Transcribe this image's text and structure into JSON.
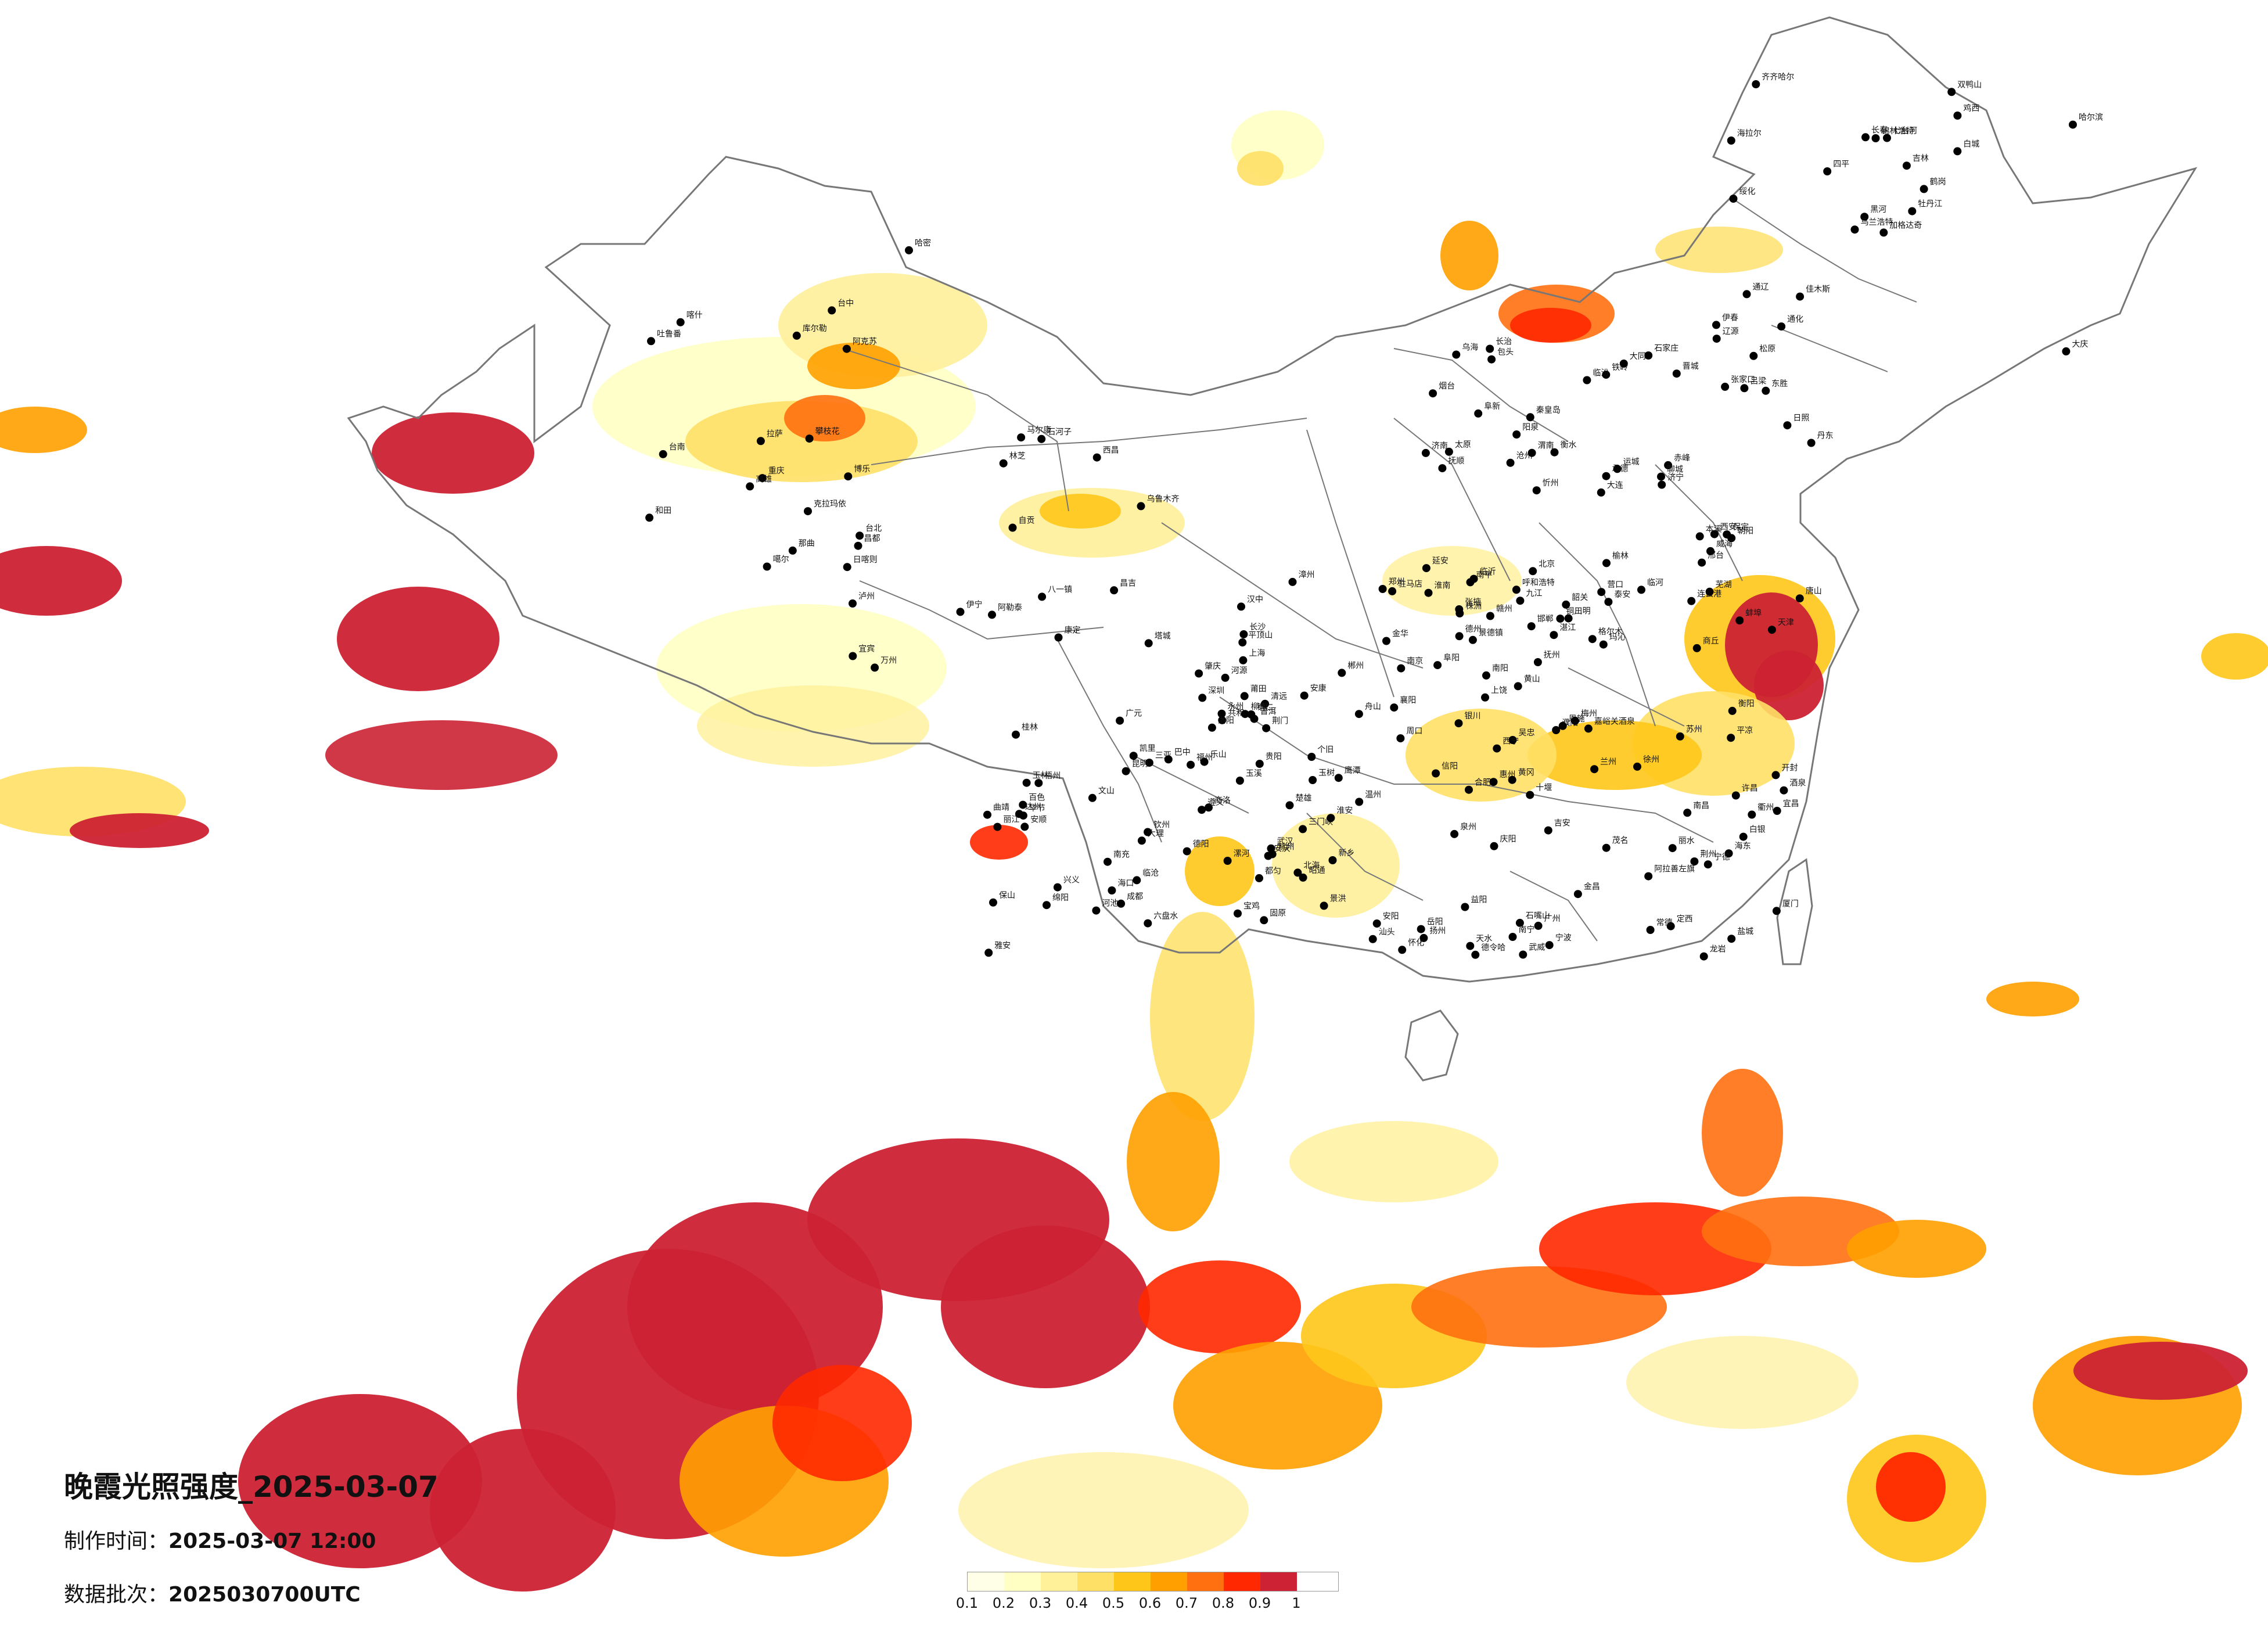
{
  "title": "晚霞光照强度_2025-03-07",
  "meta": {
    "made_label": "制作时间：",
    "made_value": "2025-03-07 12:00",
    "batch_label": "数据批次：",
    "batch_value": "2025030700UTC"
  },
  "legend": {
    "labels": [
      "0.1",
      "0.2",
      "0.3",
      "0.4",
      "0.5",
      "0.6",
      "0.7",
      "0.8",
      "0.9",
      "1"
    ],
    "colors": [
      "#ffffe8",
      "#ffffc4",
      "#fff09a",
      "#ffe066",
      "#ffc61a",
      "#ffa000",
      "#ff7010",
      "#ff2800",
      "#cc2233"
    ]
  },
  "colors": {
    "border": "#777777",
    "city_dot": "#000000"
  },
  "cities": [
    {
      "name": "加格达奇"
    },
    {
      "name": "海拉尔"
    },
    {
      "name": "黑河"
    },
    {
      "name": "伊春"
    },
    {
      "name": "鹤岗"
    },
    {
      "name": "佳木斯"
    },
    {
      "name": "双鸭山"
    },
    {
      "name": "七台河"
    },
    {
      "name": "鸡西"
    },
    {
      "name": "牡丹江"
    },
    {
      "name": "齐齐哈尔"
    },
    {
      "name": "大庆"
    },
    {
      "name": "绥化"
    },
    {
      "name": "哈尔滨"
    },
    {
      "name": "乌兰浩特"
    },
    {
      "name": "白城"
    },
    {
      "name": "松原"
    },
    {
      "name": "长春"
    },
    {
      "name": "吉林"
    },
    {
      "name": "通辽"
    },
    {
      "name": "四平"
    },
    {
      "name": "辽源"
    },
    {
      "name": "通化"
    },
    {
      "name": "锦林浩特"
    },
    {
      "name": "赤峰"
    },
    {
      "name": "朝阳"
    },
    {
      "name": "阜新"
    },
    {
      "name": "铁岭"
    },
    {
      "name": "抚顺"
    },
    {
      "name": "本溪"
    },
    {
      "name": "丹东"
    },
    {
      "name": "大连"
    },
    {
      "name": "营口"
    },
    {
      "name": "承德"
    },
    {
      "name": "秦皇岛"
    },
    {
      "name": "张家口"
    },
    {
      "name": "北京"
    },
    {
      "name": "天津"
    },
    {
      "name": "唐山"
    },
    {
      "name": "保定"
    },
    {
      "name": "石家庄"
    },
    {
      "name": "衡水"
    },
    {
      "name": "沧州"
    },
    {
      "name": "邢台"
    },
    {
      "name": "邯郸"
    },
    {
      "name": "济南"
    },
    {
      "name": "聊城"
    },
    {
      "name": "德州"
    },
    {
      "name": "泰安"
    },
    {
      "name": "济宁"
    },
    {
      "name": "临沂"
    },
    {
      "name": "日照"
    },
    {
      "name": "烟台"
    },
    {
      "name": "威海"
    },
    {
      "name": "连云港"
    },
    {
      "name": "呼和浩特"
    },
    {
      "name": "包头"
    },
    {
      "name": "乌海"
    },
    {
      "name": "临河"
    },
    {
      "name": "东胜"
    },
    {
      "name": "大同"
    },
    {
      "name": "忻州"
    },
    {
      "name": "太原"
    },
    {
      "name": "阳泉"
    },
    {
      "name": "吕梁"
    },
    {
      "name": "长治"
    },
    {
      "name": "晋城"
    },
    {
      "name": "临汾"
    },
    {
      "name": "运城"
    },
    {
      "name": "延安"
    },
    {
      "name": "榆林"
    },
    {
      "name": "铜川"
    },
    {
      "name": "西安"
    },
    {
      "name": "渭南"
    },
    {
      "name": "宝鸡"
    },
    {
      "name": "汉中"
    },
    {
      "name": "安康"
    },
    {
      "name": "商洛"
    },
    {
      "name": "银川"
    },
    {
      "name": "石嘴山"
    },
    {
      "name": "吴忠"
    },
    {
      "name": "固原"
    },
    {
      "name": "兰州"
    },
    {
      "name": "白银"
    },
    {
      "name": "天水"
    },
    {
      "name": "平凉"
    },
    {
      "name": "庆阳"
    },
    {
      "name": "定西"
    },
    {
      "name": "武威"
    },
    {
      "name": "金昌"
    },
    {
      "name": "张掖"
    },
    {
      "name": "酒泉"
    },
    {
      "name": "嘉峪关酒泉"
    },
    {
      "name": "阿拉善左旗"
    },
    {
      "name": "西宁"
    },
    {
      "name": "海东"
    },
    {
      "name": "共和"
    },
    {
      "name": "德令哈"
    },
    {
      "name": "格尔木"
    },
    {
      "name": "玛沁"
    },
    {
      "name": "玉树"
    },
    {
      "name": "郑州"
    },
    {
      "name": "开封"
    },
    {
      "name": "洛阳"
    },
    {
      "name": "三门峡"
    },
    {
      "name": "新乡"
    },
    {
      "name": "安阳"
    },
    {
      "name": "濮阳"
    },
    {
      "name": "商丘"
    },
    {
      "name": "周口"
    },
    {
      "name": "许昌"
    },
    {
      "name": "平顶山"
    },
    {
      "name": "南阳"
    },
    {
      "name": "信阳"
    },
    {
      "name": "驻马店"
    },
    {
      "name": "漯河"
    },
    {
      "name": "合肥"
    },
    {
      "name": "蚌埠"
    },
    {
      "name": "阜阳"
    },
    {
      "name": "淮南"
    },
    {
      "name": "安庆"
    },
    {
      "name": "芜湖"
    },
    {
      "name": "黄山"
    },
    {
      "name": "南京"
    },
    {
      "name": "徐州"
    },
    {
      "name": "淮安"
    },
    {
      "name": "盐城"
    },
    {
      "name": "扬州"
    },
    {
      "name": "苏州"
    },
    {
      "name": "上海"
    },
    {
      "name": "杭州"
    },
    {
      "name": "宁波"
    },
    {
      "name": "舟山"
    },
    {
      "name": "金华"
    },
    {
      "name": "衢州"
    },
    {
      "name": "丽水"
    },
    {
      "name": "温州"
    },
    {
      "name": "武汉"
    },
    {
      "name": "宜昌"
    },
    {
      "name": "襄阳"
    },
    {
      "name": "十堰"
    },
    {
      "name": "荆门"
    },
    {
      "name": "荆州"
    },
    {
      "name": "黄冈"
    },
    {
      "name": "恩施"
    },
    {
      "name": "长沙"
    },
    {
      "name": "岳阳"
    },
    {
      "name": "常德"
    },
    {
      "name": "益阳"
    },
    {
      "name": "株洲"
    },
    {
      "name": "衡阳"
    },
    {
      "name": "郴州"
    },
    {
      "name": "永州"
    },
    {
      "name": "怀化"
    },
    {
      "name": "南昌"
    },
    {
      "name": "九江"
    },
    {
      "name": "景德镇"
    },
    {
      "name": "上饶"
    },
    {
      "name": "鹰潭"
    },
    {
      "name": "抚州"
    },
    {
      "name": "吉安"
    },
    {
      "name": "赣州"
    },
    {
      "name": "福州"
    },
    {
      "name": "南平"
    },
    {
      "name": "三明"
    },
    {
      "name": "莆田"
    },
    {
      "name": "泉州"
    },
    {
      "name": "厦门"
    },
    {
      "name": "漳州"
    },
    {
      "name": "龙岩"
    },
    {
      "name": "宁德"
    },
    {
      "name": "广州"
    },
    {
      "name": "深圳"
    },
    {
      "name": "韶关"
    },
    {
      "name": "梅州"
    },
    {
      "name": "汕头"
    },
    {
      "name": "湛江"
    },
    {
      "name": "茂名"
    },
    {
      "name": "肇庆"
    },
    {
      "name": "清远"
    },
    {
      "name": "河源"
    },
    {
      "name": "惠州"
    },
    {
      "name": "南宁"
    },
    {
      "name": "柳州"
    },
    {
      "name": "桂林"
    },
    {
      "name": "梧州"
    },
    {
      "name": "玉林"
    },
    {
      "name": "百色"
    },
    {
      "name": "河池"
    },
    {
      "name": "钦州"
    },
    {
      "name": "北海"
    },
    {
      "name": "海口"
    },
    {
      "name": "三亚"
    },
    {
      "name": "贵阳"
    },
    {
      "name": "遵义"
    },
    {
      "name": "六盘水"
    },
    {
      "name": "安顺"
    },
    {
      "name": "凯里"
    },
    {
      "name": "都匀"
    },
    {
      "name": "兴义"
    },
    {
      "name": "毕节"
    },
    {
      "name": "铜仁"
    },
    {
      "name": "昆明"
    },
    {
      "name": "曲靖"
    },
    {
      "name": "玉溪"
    },
    {
      "name": "丽江"
    },
    {
      "name": "大理"
    },
    {
      "name": "保山"
    },
    {
      "name": "临沧"
    },
    {
      "name": "普洱"
    },
    {
      "name": "景洪"
    },
    {
      "name": "个旧"
    },
    {
      "name": "文山"
    },
    {
      "name": "昭通"
    },
    {
      "name": "楚雄"
    },
    {
      "name": "成都"
    },
    {
      "name": "绵阳"
    },
    {
      "name": "德阳"
    },
    {
      "name": "南充"
    },
    {
      "name": "达州"
    },
    {
      "name": "广元"
    },
    {
      "name": "巴中"
    },
    {
      "name": "雅安"
    },
    {
      "name": "乐山"
    },
    {
      "name": "宜宾"
    },
    {
      "name": "泸州"
    },
    {
      "name": "自贡"
    },
    {
      "name": "西昌"
    },
    {
      "name": "攀枝花"
    },
    {
      "name": "康定"
    },
    {
      "name": "马尔康"
    },
    {
      "name": "重庆"
    },
    {
      "name": "万州"
    },
    {
      "name": "拉萨"
    },
    {
      "name": "日喀则"
    },
    {
      "name": "林芝"
    },
    {
      "name": "昌都"
    },
    {
      "name": "那曲"
    },
    {
      "name": "噶尔"
    },
    {
      "name": "八一镇"
    },
    {
      "name": "乌鲁木齐"
    },
    {
      "name": "昌吉"
    },
    {
      "name": "石河子"
    },
    {
      "name": "克拉玛依"
    },
    {
      "name": "伊宁"
    },
    {
      "name": "阿勒泰"
    },
    {
      "name": "塔城"
    },
    {
      "name": "博乐"
    },
    {
      "name": "库尔勒"
    },
    {
      "name": "阿克苏"
    },
    {
      "name": "喀什"
    },
    {
      "name": "和田"
    },
    {
      "name": "哈密"
    },
    {
      "name": "吐鲁番"
    },
    {
      "name": "台北"
    },
    {
      "name": "台中"
    },
    {
      "name": "台南"
    },
    {
      "name": "高雄"
    }
  ]
}
